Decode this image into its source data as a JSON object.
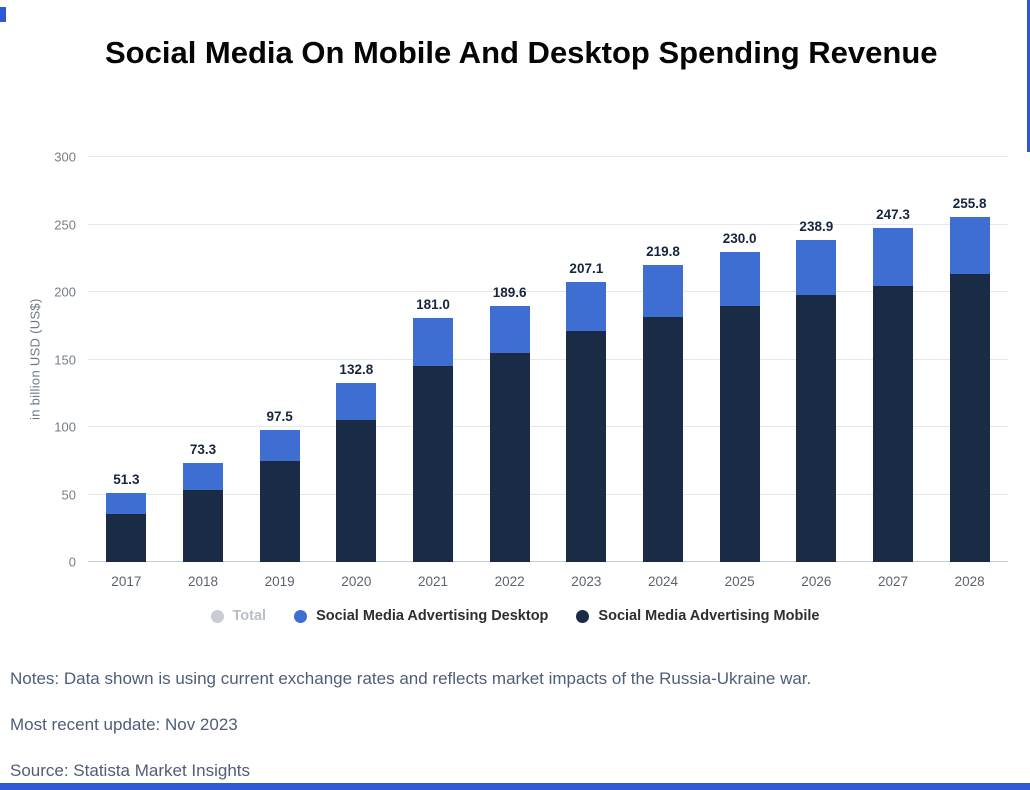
{
  "page": {
    "accent_color": "#2d58d6"
  },
  "chart_data": {
    "type": "bar",
    "stacked": true,
    "title": "Social Media On Mobile And Desktop Spending Revenue",
    "xlabel": "",
    "ylabel": "in billion USD (US$)",
    "ylim": [
      0,
      300
    ],
    "yticks": [
      0,
      50,
      100,
      150,
      200,
      250,
      300
    ],
    "grid": true,
    "legend_position": "bottom",
    "categories": [
      "2017",
      "2018",
      "2019",
      "2020",
      "2021",
      "2022",
      "2023",
      "2024",
      "2025",
      "2026",
      "2027",
      "2028"
    ],
    "series": [
      {
        "name": "Social Media Advertising Mobile",
        "color": "#1a2b45",
        "stack_position": "bottom",
        "values": [
          35.5,
          53.5,
          74.8,
          105.0,
          145.5,
          155.0,
          170.8,
          181.8,
          190.0,
          197.5,
          204.8,
          213.2
        ]
      },
      {
        "name": "Social Media Advertising Desktop",
        "color": "#3e6ed2",
        "stack_position": "top",
        "values": [
          15.8,
          19.8,
          22.7,
          27.8,
          35.5,
          34.6,
          36.3,
          38.0,
          40.0,
          41.4,
          42.5,
          42.6
        ]
      }
    ],
    "totals": [
      51.3,
      73.3,
      97.5,
      132.8,
      181.0,
      189.6,
      207.1,
      219.8,
      230.0,
      238.9,
      247.3,
      255.8
    ],
    "legend": [
      {
        "label": "Total",
        "color": "#c9cdd3",
        "muted": true
      },
      {
        "label": "Social Media Advertising Desktop",
        "color": "#3e6ed2",
        "muted": false
      },
      {
        "label": "Social Media Advertising Mobile",
        "color": "#1a2b45",
        "muted": false
      }
    ]
  },
  "footer": {
    "notes": "Notes: Data shown is using current exchange rates and reflects market impacts of the Russia-Ukraine war.",
    "updated": "Most recent update: Nov 2023",
    "source": "Source: Statista Market Insights"
  }
}
